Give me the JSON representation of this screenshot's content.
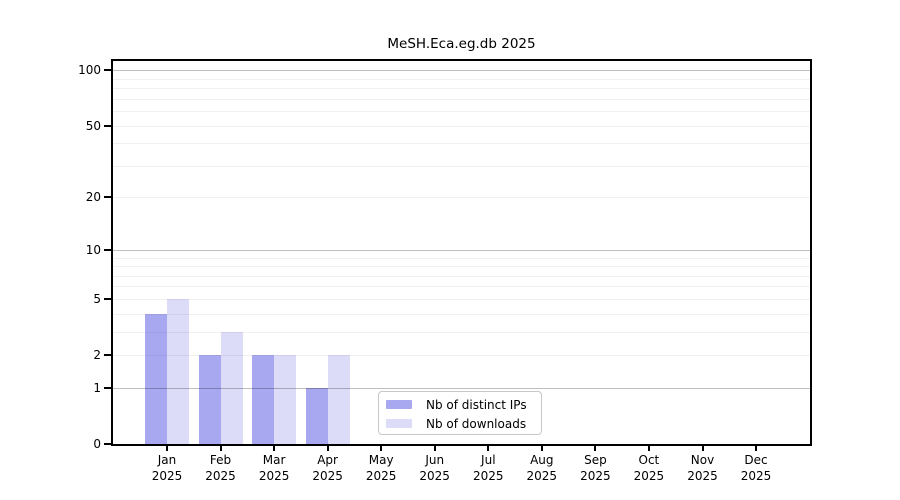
{
  "chart_data": {
    "type": "bar",
    "title": "MeSH.Eca.eg.db 2025",
    "categories": [
      "Jan",
      "Feb",
      "Mar",
      "Apr",
      "May",
      "Jun",
      "Jul",
      "Aug",
      "Sep",
      "Oct",
      "Nov",
      "Dec"
    ],
    "x_tick_year": "2025",
    "series": [
      {
        "name": "Nb of distinct IPs",
        "color": "#a8a8f0",
        "values": [
          4,
          2,
          2,
          1,
          0,
          0,
          0,
          0,
          0,
          0,
          0,
          0
        ]
      },
      {
        "name": "Nb of downloads",
        "color": "#dcdcf8",
        "values": [
          5,
          3,
          2,
          2,
          0,
          0,
          0,
          0,
          0,
          0,
          0,
          0
        ]
      }
    ],
    "yscale": "log1p",
    "y_ticks": [
      0,
      1,
      2,
      5,
      10,
      20,
      50,
      100
    ],
    "ylim": [
      0,
      112
    ],
    "grid": {
      "major_values": [
        1,
        10,
        100
      ],
      "minor_values": [
        2,
        3,
        4,
        5,
        6,
        7,
        8,
        9,
        20,
        30,
        40,
        50,
        60,
        70,
        80,
        90
      ],
      "major_color": "#c0c0c0",
      "minor_color": "#f0f0f0"
    },
    "legend": {
      "position": "lower center",
      "entries": [
        "Nb of distinct IPs",
        "Nb of downloads"
      ]
    }
  }
}
